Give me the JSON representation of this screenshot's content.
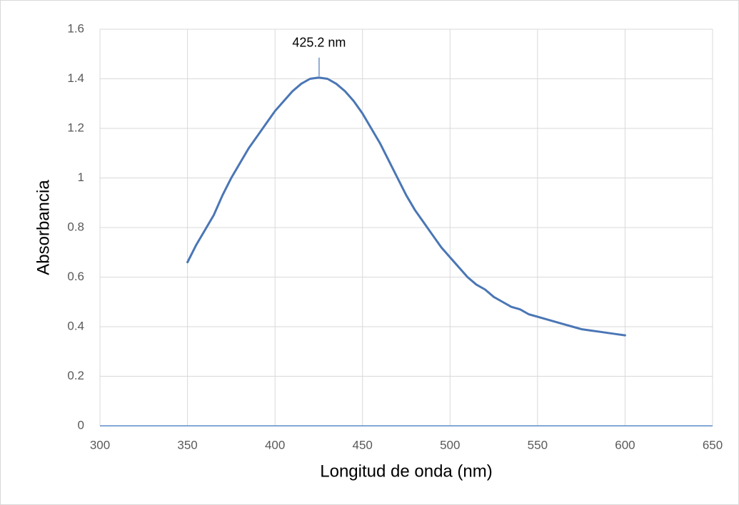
{
  "chart_data": {
    "type": "line",
    "x_label": "Longitud de onda (nm)",
    "y_label": "Absorbancia",
    "x": [
      350,
      355,
      360,
      365,
      370,
      375,
      380,
      385,
      390,
      395,
      400,
      405,
      410,
      415,
      420,
      425,
      430,
      435,
      440,
      445,
      450,
      455,
      460,
      465,
      470,
      475,
      480,
      485,
      490,
      495,
      500,
      505,
      510,
      515,
      520,
      525,
      530,
      535,
      540,
      545,
      550,
      555,
      560,
      565,
      570,
      575,
      580,
      585,
      590,
      595,
      600
    ],
    "values": [
      0.66,
      0.73,
      0.79,
      0.85,
      0.93,
      1.0,
      1.06,
      1.12,
      1.17,
      1.22,
      1.27,
      1.31,
      1.35,
      1.38,
      1.4,
      1.405,
      1.4,
      1.38,
      1.35,
      1.31,
      1.26,
      1.2,
      1.14,
      1.07,
      1.0,
      0.93,
      0.87,
      0.82,
      0.77,
      0.72,
      0.68,
      0.64,
      0.6,
      0.57,
      0.55,
      0.52,
      0.5,
      0.48,
      0.47,
      0.45,
      0.44,
      0.43,
      0.42,
      0.41,
      0.4,
      0.39,
      0.385,
      0.38,
      0.375,
      0.37,
      0.365
    ],
    "color": "#4a76b5",
    "xlim": [
      300,
      650
    ],
    "xticks": [
      300,
      350,
      400,
      450,
      500,
      550,
      600,
      650
    ],
    "ylim": [
      0,
      1.6
    ],
    "yticks": [
      0,
      0.2,
      0.4,
      0.6,
      0.8,
      1,
      1.2,
      1.4,
      1.6
    ],
    "grid": true,
    "annotations": [
      {
        "x": 425.2,
        "label": "425.2 nm"
      }
    ]
  }
}
